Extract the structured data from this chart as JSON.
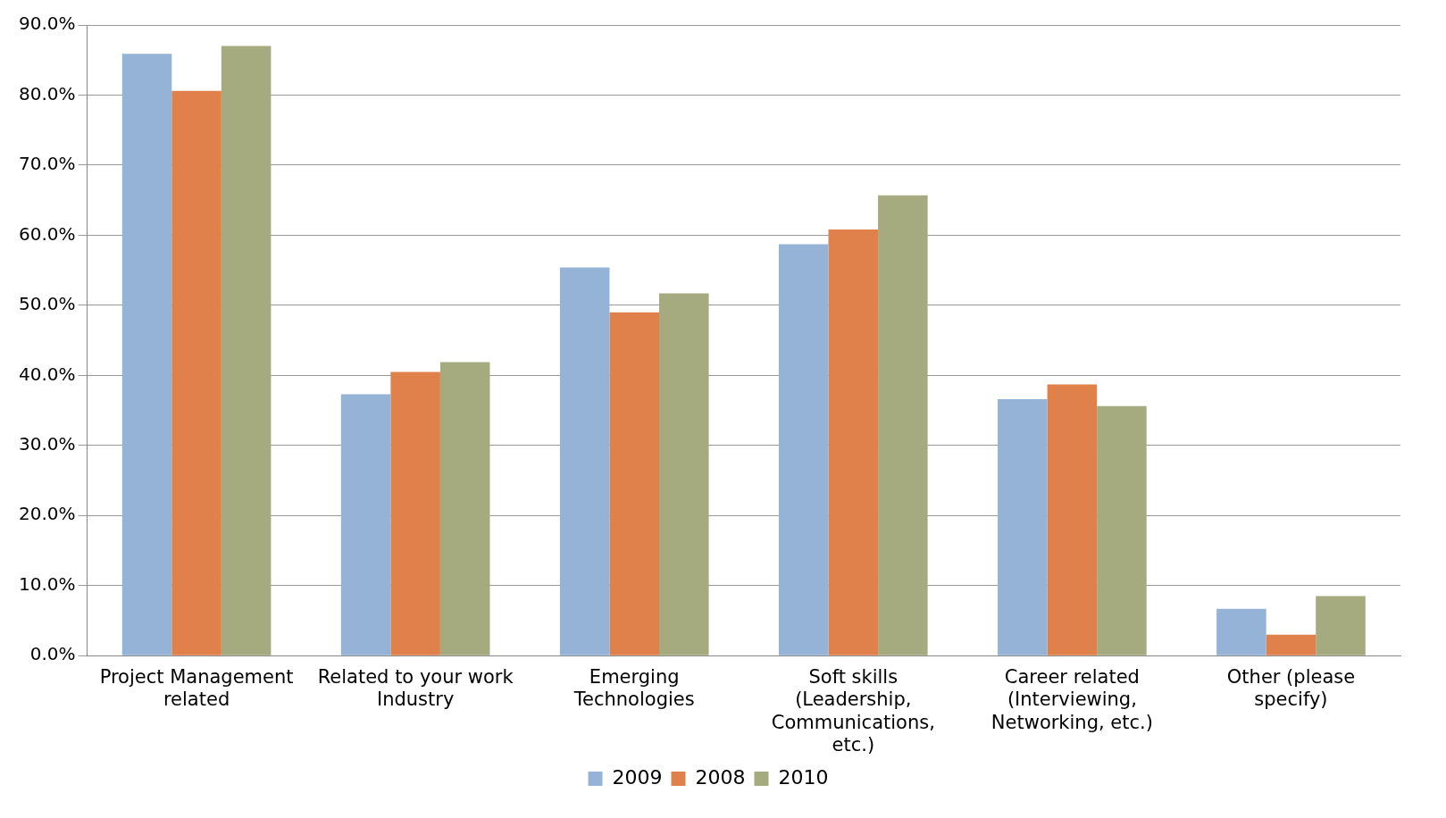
{
  "chart_data": {
    "type": "bar",
    "categories": [
      "Project Management related",
      "Related to your work Industry",
      "Emerging Technologies",
      "Soft skills (Leadership, Communications, etc.)",
      "Career related (Interviewing, Networking, etc.)",
      "Other (please specify)"
    ],
    "series": [
      {
        "name": "2009",
        "color": "#95b3d7",
        "values": [
          85.9,
          37.3,
          55.4,
          58.7,
          36.6,
          6.7
        ]
      },
      {
        "name": "2008",
        "color": "#e0804a",
        "values": [
          80.6,
          40.5,
          49.0,
          60.8,
          38.7,
          3.0
        ]
      },
      {
        "name": "2010",
        "color": "#a6ab7f",
        "values": [
          87.0,
          41.9,
          51.7,
          65.7,
          35.6,
          8.5
        ]
      }
    ],
    "ylim": [
      0,
      90
    ],
    "yticks": [
      {
        "value": 0,
        "label": "0.0%"
      },
      {
        "value": 10,
        "label": "10.0%"
      },
      {
        "value": 20,
        "label": "20.0%"
      },
      {
        "value": 30,
        "label": "30.0%"
      },
      {
        "value": 40,
        "label": "40.0%"
      },
      {
        "value": 50,
        "label": "50.0%"
      },
      {
        "value": 60,
        "label": "60.0%"
      },
      {
        "value": 70,
        "label": "70.0%"
      },
      {
        "value": 80,
        "label": "80.0%"
      },
      {
        "value": 90,
        "label": "90.0%"
      }
    ],
    "grid": "y",
    "legend": "bottom"
  }
}
